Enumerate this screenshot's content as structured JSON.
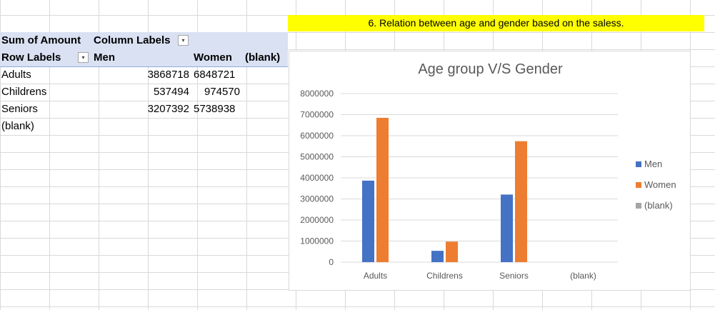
{
  "pivot": {
    "header_sum": "Sum of Amount",
    "header_col": "Column Labels",
    "row_labels": "Row Labels",
    "col_men": "Men",
    "col_women": "Women",
    "col_blank": "(blank)",
    "rows": [
      {
        "label": "Adults",
        "men": "3868718",
        "women": "6848721"
      },
      {
        "label": "Childrens",
        "men": "537494",
        "women": "974570"
      },
      {
        "label": "Seniors",
        "men": "3207392",
        "women": "5738938"
      },
      {
        "label": "(blank)",
        "men": "",
        "women": ""
      }
    ]
  },
  "banner": "6. Relation between age and gender based on the saless.",
  "chart_data": {
    "type": "bar",
    "title": "Age group V/S Gender",
    "categories": [
      "Adults",
      "Childrens",
      "Seniors",
      "(blank)"
    ],
    "series": [
      {
        "name": "Men",
        "color": "#4472c4",
        "values": [
          3868718,
          537494,
          3207392,
          0
        ]
      },
      {
        "name": "Women",
        "color": "#ed7d31",
        "values": [
          6848721,
          974570,
          5738938,
          0
        ]
      },
      {
        "name": "(blank)",
        "color": "#a5a5a5",
        "values": [
          0,
          0,
          0,
          0
        ]
      }
    ],
    "ylim": [
      0,
      8000000
    ],
    "yticks": [
      "0",
      "1000000",
      "2000000",
      "3000000",
      "4000000",
      "5000000",
      "6000000",
      "7000000",
      "8000000"
    ],
    "grid": true,
    "legend_position": "right"
  }
}
